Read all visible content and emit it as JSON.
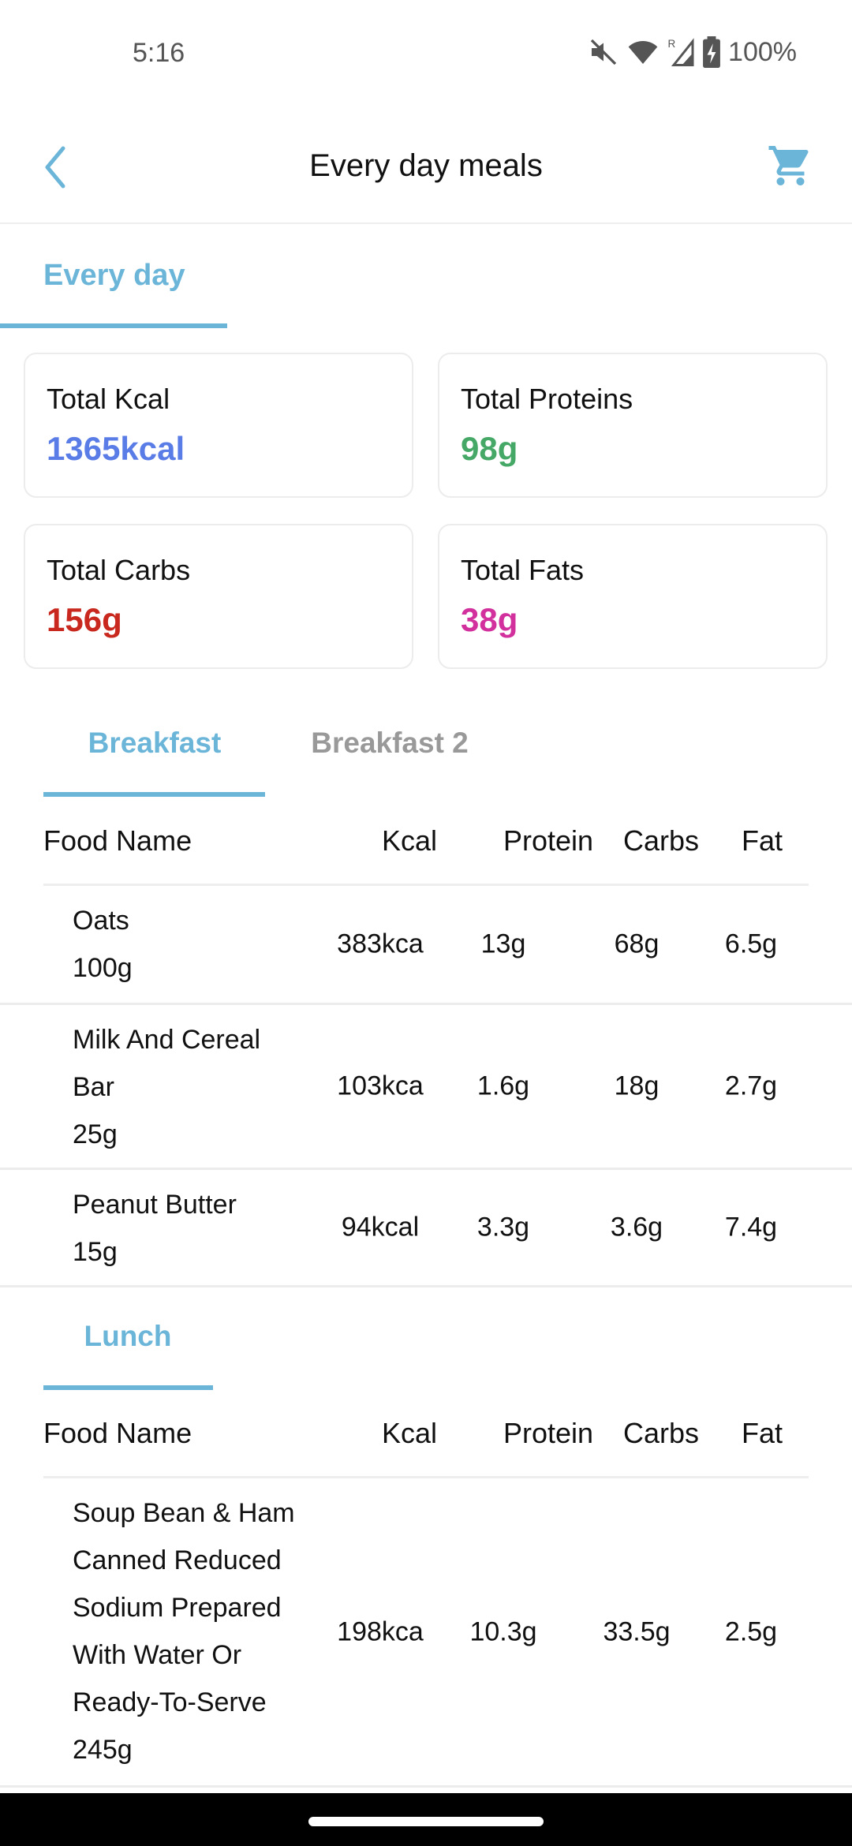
{
  "status_bar": {
    "time": "5:16",
    "battery": "100%",
    "icons": [
      "mute-icon",
      "wifi-icon",
      "signal-roaming-icon",
      "battery-charging-icon"
    ]
  },
  "header": {
    "title": "Every day meals",
    "back_icon": "chevron-left-icon",
    "cart_icon": "cart-icon"
  },
  "day_tab": {
    "label": "Every day"
  },
  "colors": {
    "accent": "#6bb5d9",
    "kcal": "#5a7ce6",
    "protein": "#45a866",
    "carbs": "#c8281e",
    "fats": "#d2309c"
  },
  "summary": [
    {
      "label": "Total Kcal",
      "value": "1365kcal"
    },
    {
      "label": "Total Proteins",
      "value": "98g"
    },
    {
      "label": "Total Carbs",
      "value": "156g"
    },
    {
      "label": "Total Fats",
      "value": "38g"
    }
  ],
  "columns": {
    "name": "Food Name",
    "kcal": "Kcal",
    "protein": "Protein",
    "carbs": "Carbs",
    "fat": "Fat"
  },
  "breakfast": {
    "tabs": [
      {
        "label": "Breakfast",
        "active": true
      },
      {
        "label": "Breakfast 2",
        "active": false
      }
    ],
    "items": [
      {
        "name": "Oats",
        "amount": "100g",
        "kcal": "383kca",
        "protein": "13g",
        "carbs": "68g",
        "fat": "6.5g"
      },
      {
        "name": "Milk And Cereal Bar",
        "amount": "25g",
        "kcal": "103kca",
        "protein": "1.6g",
        "carbs": "18g",
        "fat": "2.7g"
      },
      {
        "name": "Peanut Butter",
        "amount": "15g",
        "kcal": "94kcal",
        "protein": "3.3g",
        "carbs": "3.6g",
        "fat": "7.4g"
      }
    ]
  },
  "lunch": {
    "tabs": [
      {
        "label": "Lunch",
        "active": true
      }
    ],
    "items": [
      {
        "name": "Soup Bean & Ham Canned Reduced Sodium Prepared With Water Or Ready-To-Serve",
        "amount": "245g",
        "kcal": "198kca",
        "protein": "10.3g",
        "carbs": "33.5g",
        "fat": "2.5g"
      }
    ]
  }
}
